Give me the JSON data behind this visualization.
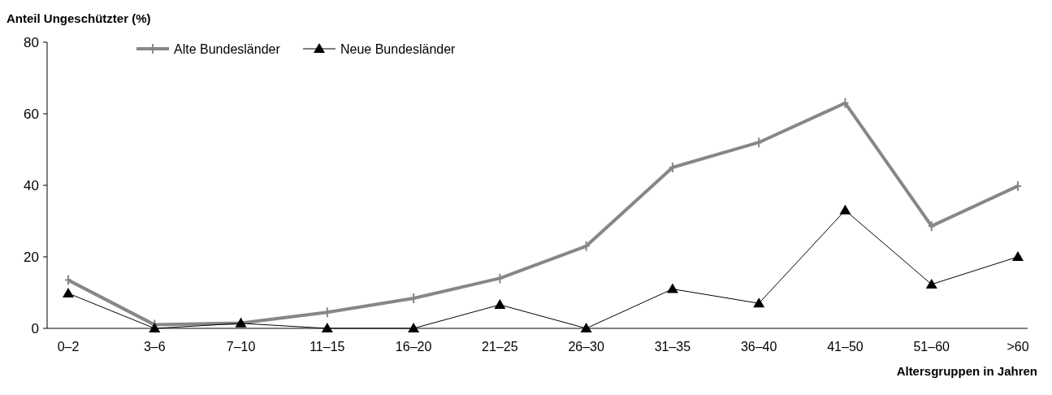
{
  "chart_data": {
    "type": "line",
    "ylabel": "Anteil Ungeschützter (%)",
    "xlabel": "Altersgruppen in Jahren",
    "categories": [
      "0–2",
      "3–6",
      "7–10",
      "11–15",
      "16–20",
      "21–25",
      "26–30",
      "31–35",
      "36–40",
      "41–50",
      "51–60",
      ">60"
    ],
    "series": [
      {
        "name": "Alte Bundesländer",
        "color": "#878787",
        "marker": "cross",
        "values": [
          13.5,
          1,
          1.5,
          4.5,
          8.4,
          14,
          23,
          45,
          52,
          63,
          28.6,
          39.8
        ]
      },
      {
        "name": "Neue Bundesländer",
        "color": "#000000",
        "marker": "triangle",
        "values": [
          9.8,
          0,
          1.4,
          0,
          0,
          6.6,
          0,
          11,
          7,
          33,
          12.3,
          20
        ]
      }
    ],
    "ylim": [
      0,
      80
    ],
    "yticks": [
      0,
      20,
      40,
      60,
      80
    ],
    "legend": "top left",
    "grid": false
  }
}
